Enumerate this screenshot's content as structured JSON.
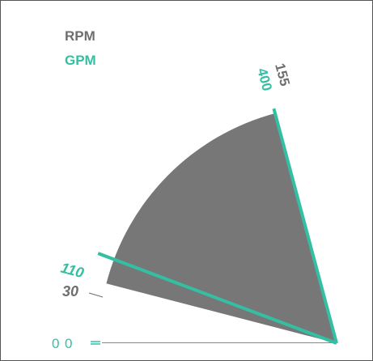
{
  "chart_data": {
    "type": "gauge",
    "legend": [
      {
        "name": "RPM",
        "color": "#6e6e6e"
      },
      {
        "name": "GPM",
        "color": "#34bfa3"
      }
    ],
    "scales": {
      "RPM": {
        "min": 0,
        "max": 155
      },
      "GPM": {
        "min": 0,
        "max": 400
      }
    },
    "range_band": {
      "from_rpm": 30,
      "to_rpm": 155
    },
    "needles": [
      {
        "series": "GPM",
        "value": 110
      },
      {
        "series": "GPM",
        "value": 400
      }
    ],
    "tick_labels": {
      "zero_rpm": "0",
      "zero_gpm": "0",
      "low_rpm": "30",
      "low_gpm": "110",
      "high_rpm": "155",
      "high_gpm": "400"
    }
  },
  "colors": {
    "band": "#777777",
    "rpm": "#6e6e6e",
    "gpm": "#34bfa3",
    "frame": "#555555",
    "baseline": "#888888"
  }
}
